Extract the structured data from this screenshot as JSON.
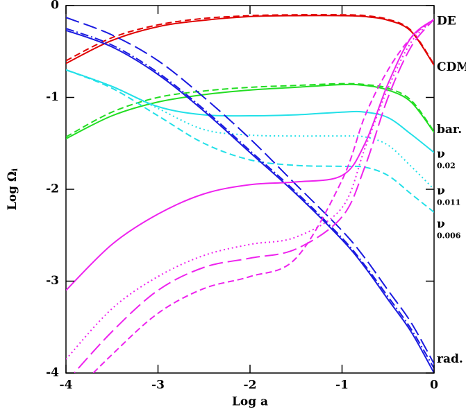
{
  "chart_data": {
    "type": "line",
    "xlabel": "Log a",
    "ylabel": "Log Ω",
    "ylabel_sub": "i",
    "x": [
      -4,
      -3.5,
      -3,
      -2.5,
      -2,
      -1.5,
      -1,
      -0.75,
      -0.5,
      -0.25,
      0
    ],
    "xlim": [
      -4,
      0
    ],
    "xticks": [
      -4,
      -3,
      -2,
      -1,
      0
    ],
    "ylim": [
      -4,
      0
    ],
    "yticks": [
      -4,
      -3,
      -2,
      -1,
      0
    ],
    "series": [
      {
        "color": "#e00000",
        "dash": "solid",
        "values": [
          -0.63,
          -0.38,
          -0.23,
          -0.16,
          -0.12,
          -0.11,
          -0.11,
          -0.12,
          -0.16,
          -0.28,
          -0.65
        ]
      },
      {
        "color": "#e00000",
        "dash": "dashed",
        "values": [
          -0.6,
          -0.35,
          -0.21,
          -0.14,
          -0.11,
          -0.1,
          -0.1,
          -0.11,
          -0.15,
          -0.27,
          -0.64
        ]
      },
      {
        "color": "#22dd22",
        "dash": "solid",
        "values": [
          -1.45,
          -1.2,
          -1.05,
          -0.97,
          -0.92,
          -0.89,
          -0.86,
          -0.87,
          -0.92,
          -1.05,
          -1.38
        ]
      },
      {
        "color": "#22dd22",
        "dash": "dashed",
        "values": [
          -1.43,
          -1.16,
          -1.0,
          -0.93,
          -0.89,
          -0.87,
          -0.85,
          -0.86,
          -0.9,
          -1.03,
          -1.37
        ]
      },
      {
        "color": "#22e0e8",
        "dash": "solid",
        "values": [
          -0.7,
          -0.88,
          -1.1,
          -1.19,
          -1.2,
          -1.19,
          -1.16,
          -1.16,
          -1.22,
          -1.4,
          -1.6
        ]
      },
      {
        "color": "#22e0e8",
        "dash": "dotted",
        "values": [
          -0.7,
          -0.88,
          -1.12,
          -1.35,
          -1.41,
          -1.42,
          -1.42,
          -1.43,
          -1.52,
          -1.75,
          -2.0
        ]
      },
      {
        "color": "#22e0e8",
        "dash": "dashed",
        "values": [
          -0.7,
          -0.9,
          -1.2,
          -1.5,
          -1.68,
          -1.74,
          -1.75,
          -1.76,
          -1.85,
          -2.05,
          -2.25
        ]
      },
      {
        "color": "#1a1ae0",
        "dash": "solid",
        "values": [
          -0.27,
          -0.45,
          -0.75,
          -1.15,
          -1.6,
          -2.05,
          -2.55,
          -2.85,
          -3.2,
          -3.55,
          -4.0
        ]
      },
      {
        "color": "#1a1ae0",
        "dash": "dashdot",
        "values": [
          -0.25,
          -0.43,
          -0.73,
          -1.13,
          -1.58,
          -2.03,
          -2.53,
          -2.83,
          -3.17,
          -3.52,
          -3.95
        ]
      },
      {
        "color": "#1a1ae0",
        "dash": "longdash",
        "values": [
          -0.13,
          -0.32,
          -0.6,
          -1.0,
          -1.45,
          -1.95,
          -2.45,
          -2.75,
          -3.1,
          -3.45,
          -3.9
        ]
      },
      {
        "color": "#ee22ee",
        "dash": "solid",
        "values": [
          -3.1,
          -2.6,
          -2.27,
          -2.05,
          -1.95,
          -1.92,
          -1.85,
          -1.5,
          -0.85,
          -0.35,
          -0.15
        ]
      },
      {
        "color": "#ee22ee",
        "dash": "dotted",
        "values": [
          -3.85,
          -3.3,
          -2.95,
          -2.72,
          -2.6,
          -2.52,
          -2.2,
          -1.55,
          -0.9,
          -0.4,
          -0.15
        ]
      },
      {
        "color": "#ee22ee",
        "dash": "longdash",
        "values": [
          -4.1,
          -3.55,
          -3.1,
          -2.85,
          -2.75,
          -2.65,
          -2.3,
          -1.75,
          -1.0,
          -0.45,
          -0.15
        ]
      },
      {
        "color": "#ee22ee",
        "dash": "dashed",
        "values": [
          -4.3,
          -3.8,
          -3.35,
          -3.08,
          -2.95,
          -2.75,
          -1.9,
          -1.2,
          -0.7,
          -0.35,
          -0.15
        ]
      }
    ],
    "annotations": [
      {
        "text": "DE",
        "y": -0.17
      },
      {
        "text": "CDM",
        "y": -0.67
      },
      {
        "text": "bar.",
        "y": -1.35
      },
      {
        "text": "ν",
        "sub": "0.02",
        "y": -1.62
      },
      {
        "text": "ν",
        "sub": "0.011",
        "y": -2.02
      },
      {
        "text": "ν",
        "sub": "0.006",
        "y": -2.38
      },
      {
        "text": "rad.",
        "y": -3.85
      }
    ]
  }
}
